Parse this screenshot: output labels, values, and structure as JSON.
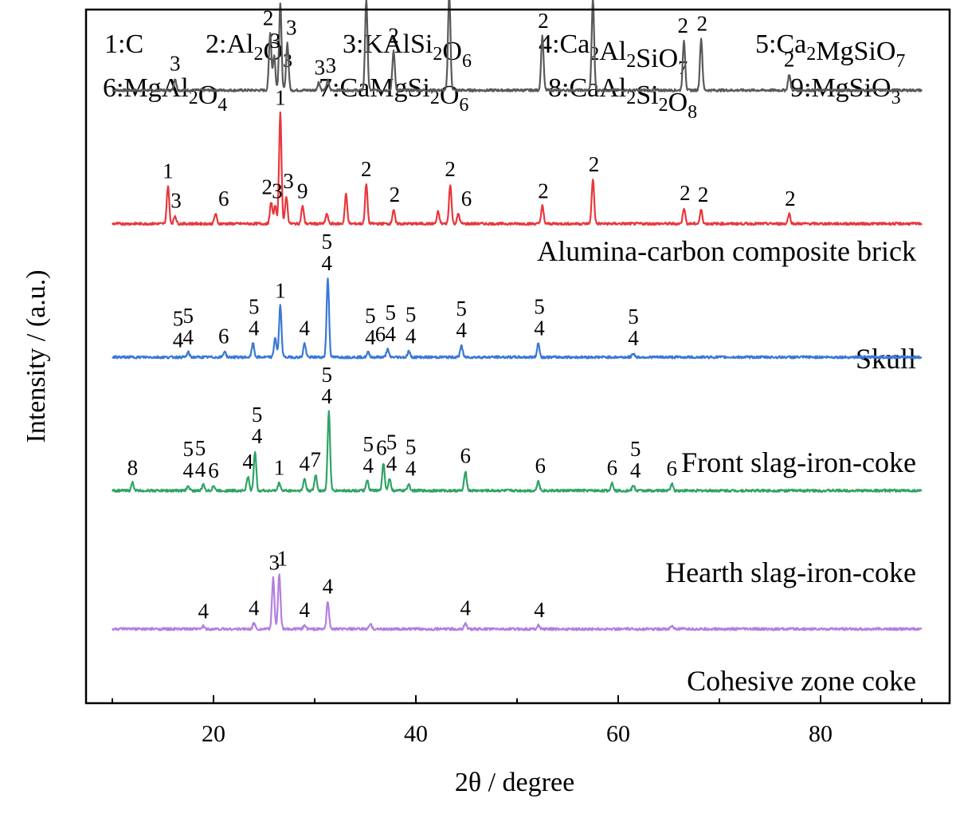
{
  "chart_data": {
    "type": "line",
    "xlabel": "2θ / degree",
    "ylabel": "Intensity / (a.u.)",
    "xlim": [
      5,
      93
    ],
    "x_ticks": [
      20,
      40,
      60,
      80
    ],
    "x_minor_ticks": [
      10,
      30,
      50,
      70,
      90
    ],
    "y_ticks_shown": false,
    "grid": false,
    "legend_placement": "top",
    "phase_legend": [
      {
        "id": "1",
        "formula": "C",
        "sub": []
      },
      {
        "id": "2",
        "formula": "Al2O3",
        "sub": [
          {
            "t": "Al",
            "s": "2"
          },
          {
            "t": "O",
            "s": "3"
          }
        ]
      },
      {
        "id": "3",
        "formula": "KAlSi2O6",
        "sub": [
          {
            "t": "KAlSi",
            "s": "2"
          },
          {
            "t": "O",
            "s": "6"
          }
        ]
      },
      {
        "id": "4",
        "formula": "Ca2Al2SiO7",
        "sub": [
          {
            "t": "Ca",
            "s": "2"
          },
          {
            "t": "Al",
            "s": "2"
          },
          {
            "t": "SiO",
            "s": "7"
          }
        ]
      },
      {
        "id": "5",
        "formula": "Ca2MgSiO7",
        "sub": [
          {
            "t": "Ca",
            "s": "2"
          },
          {
            "t": "MgSiO",
            "s": "7"
          }
        ]
      },
      {
        "id": "6",
        "formula": "MgAl2O4",
        "sub": [
          {
            "t": "MgAl",
            "s": "2"
          },
          {
            "t": "O",
            "s": "4"
          }
        ]
      },
      {
        "id": "7",
        "formula": "CaMgSi2O6",
        "sub": [
          {
            "t": "CaMgSi",
            "s": "2"
          },
          {
            "t": "O",
            "s": "6"
          }
        ]
      },
      {
        "id": "8",
        "formula": "CaAl2Si2O8",
        "sub": [
          {
            "t": "CaAl",
            "s": "2"
          },
          {
            "t": "Si",
            "s": "2"
          },
          {
            "t": "O",
            "s": "8"
          }
        ]
      },
      {
        "id": "9",
        "formula": "MgSiO3",
        "sub": [
          {
            "t": "MgSiO",
            "s": "3"
          }
        ]
      }
    ],
    "series": [
      {
        "name": "Alumina-carbon composite brick",
        "color": "#595959",
        "baseline": 6.2,
        "peaks": [
          [
            16.2,
            0.12
          ],
          [
            25.6,
            0.58
          ],
          [
            26.0,
            0.35
          ],
          [
            26.6,
            0.88
          ],
          [
            27.3,
            0.48
          ],
          [
            30.4,
            0.08
          ],
          [
            31.3,
            0.1
          ],
          [
            35.1,
            0.92
          ],
          [
            37.8,
            0.4
          ],
          [
            43.3,
            0.98
          ],
          [
            52.5,
            0.55
          ],
          [
            57.5,
            0.92
          ],
          [
            66.5,
            0.5
          ],
          [
            68.2,
            0.52
          ],
          [
            76.9,
            0.16
          ]
        ],
        "labels": [
          {
            "x": 16.2,
            "text": [
              "3"
            ]
          },
          {
            "x": 25.4,
            "text": [
              "2"
            ]
          },
          {
            "x": 26.1,
            "text": [
              "3"
            ]
          },
          {
            "x": 26.6,
            "text": [
              "1"
            ]
          },
          {
            "x": 27.7,
            "text": [
              "3"
            ]
          },
          {
            "x": 30.5,
            "text": [
              "3"
            ]
          },
          {
            "x": 31.6,
            "text": [
              "3"
            ]
          },
          {
            "x": 35.1,
            "text": [
              "2"
            ]
          },
          {
            "x": 37.8,
            "text": [
              "2"
            ]
          },
          {
            "x": 43.5,
            "text": [
              "2"
            ]
          },
          {
            "x": 52.6,
            "text": [
              "2"
            ]
          },
          {
            "x": 57.6,
            "text": [
              "2"
            ]
          },
          {
            "x": 66.4,
            "text": [
              "2"
            ]
          },
          {
            "x": 68.3,
            "text": [
              "2"
            ]
          },
          {
            "x": 76.9,
            "text": [
              "2"
            ]
          }
        ]
      },
      {
        "name": "Skull",
        "color": "#e8383d",
        "baseline": 4.85,
        "peaks": [
          [
            15.5,
            0.38
          ],
          [
            16.2,
            0.08
          ],
          [
            20.2,
            0.1
          ],
          [
            25.7,
            0.22
          ],
          [
            26.1,
            0.18
          ],
          [
            26.6,
            1.12
          ],
          [
            27.2,
            0.28
          ],
          [
            28.8,
            0.18
          ],
          [
            31.2,
            0.1
          ],
          [
            33.1,
            0.3
          ],
          [
            35.1,
            0.4
          ],
          [
            37.8,
            0.14
          ],
          [
            42.2,
            0.12
          ],
          [
            43.4,
            0.4
          ],
          [
            44.2,
            0.1
          ],
          [
            52.5,
            0.18
          ],
          [
            57.5,
            0.45
          ],
          [
            66.5,
            0.16
          ],
          [
            68.2,
            0.14
          ],
          [
            76.9,
            0.1
          ]
        ],
        "labels": [
          {
            "x": 15.5,
            "text": [
              "1"
            ]
          },
          {
            "x": 16.3,
            "text": [
              "3"
            ]
          },
          {
            "x": 21.0,
            "text": [
              "6"
            ]
          },
          {
            "x": 25.3,
            "text": [
              "2"
            ]
          },
          {
            "x": 26.3,
            "text": [
              "3"
            ]
          },
          {
            "x": 26.6,
            "text": [
              "1"
            ]
          },
          {
            "x": 27.4,
            "text": [
              "3"
            ]
          },
          {
            "x": 28.8,
            "text": [
              "9"
            ]
          },
          {
            "x": 35.1,
            "text": [
              "2"
            ]
          },
          {
            "x": 37.9,
            "text": [
              "2"
            ]
          },
          {
            "x": 43.4,
            "text": [
              "2"
            ]
          },
          {
            "x": 45.0,
            "text": [
              "6"
            ]
          },
          {
            "x": 52.6,
            "text": [
              "2"
            ]
          },
          {
            "x": 57.6,
            "text": [
              "2"
            ]
          },
          {
            "x": 66.6,
            "text": [
              "2"
            ]
          },
          {
            "x": 68.4,
            "text": [
              "2"
            ]
          },
          {
            "x": 77.0,
            "text": [
              "2"
            ]
          }
        ]
      },
      {
        "name": "Front slag-iron-coke",
        "color": "#3a78d6",
        "baseline": 3.5,
        "peaks": [
          [
            17.5,
            0.05
          ],
          [
            21.1,
            0.06
          ],
          [
            23.9,
            0.14
          ],
          [
            26.1,
            0.2
          ],
          [
            26.6,
            0.52
          ],
          [
            29.0,
            0.14
          ],
          [
            31.3,
            0.8
          ],
          [
            35.3,
            0.05
          ],
          [
            37.2,
            0.08
          ],
          [
            39.3,
            0.06
          ],
          [
            44.5,
            0.12
          ],
          [
            52.1,
            0.14
          ],
          [
            61.5,
            0.04
          ]
        ],
        "labels": [
          {
            "x": 16.5,
            "text": [
              "5",
              "4"
            ]
          },
          {
            "x": 17.5,
            "text": [
              "5",
              "4"
            ]
          },
          {
            "x": 21.0,
            "text": [
              "6"
            ]
          },
          {
            "x": 24.0,
            "text": [
              "5",
              "4"
            ]
          },
          {
            "x": 26.6,
            "text": [
              "1"
            ]
          },
          {
            "x": 29.0,
            "text": [
              "4"
            ]
          },
          {
            "x": 31.2,
            "text": [
              "5",
              "4"
            ]
          },
          {
            "x": 35.5,
            "text": [
              "5",
              "4"
            ]
          },
          {
            "x": 36.5,
            "text": [
              "6"
            ]
          },
          {
            "x": 37.5,
            "text": [
              "5",
              "4"
            ]
          },
          {
            "x": 39.5,
            "text": [
              "5",
              "4"
            ]
          },
          {
            "x": 44.5,
            "text": [
              "5",
              "4"
            ]
          },
          {
            "x": 52.2,
            "text": [
              "5",
              "4"
            ]
          },
          {
            "x": 61.5,
            "text": [
              "5",
              "4"
            ]
          }
        ]
      },
      {
        "name": "Hearth slag-iron-coke",
        "color": "#2fa366",
        "baseline": 2.15,
        "peaks": [
          [
            12.0,
            0.08
          ],
          [
            17.5,
            0.05
          ],
          [
            19.0,
            0.06
          ],
          [
            20.0,
            0.05
          ],
          [
            23.4,
            0.14
          ],
          [
            24.1,
            0.4
          ],
          [
            26.5,
            0.08
          ],
          [
            29.0,
            0.12
          ],
          [
            30.1,
            0.16
          ],
          [
            31.4,
            0.8
          ],
          [
            35.2,
            0.1
          ],
          [
            36.8,
            0.28
          ],
          [
            37.4,
            0.12
          ],
          [
            39.3,
            0.07
          ],
          [
            44.9,
            0.2
          ],
          [
            52.1,
            0.1
          ],
          [
            59.4,
            0.08
          ],
          [
            61.5,
            0.05
          ],
          [
            65.3,
            0.07
          ]
        ],
        "labels": [
          {
            "x": 12.0,
            "text": [
              "8"
            ]
          },
          {
            "x": 17.5,
            "text": [
              "5",
              "4"
            ]
          },
          {
            "x": 18.7,
            "text": [
              "5",
              "4"
            ]
          },
          {
            "x": 20.0,
            "text": [
              "6"
            ]
          },
          {
            "x": 23.4,
            "text": [
              "4"
            ]
          },
          {
            "x": 24.3,
            "text": [
              "5",
              "4"
            ]
          },
          {
            "x": 26.5,
            "text": [
              "1"
            ]
          },
          {
            "x": 29.0,
            "text": [
              "4"
            ]
          },
          {
            "x": 30.1,
            "text": [
              "7"
            ]
          },
          {
            "x": 31.2,
            "text": [
              "5",
              "4"
            ]
          },
          {
            "x": 35.3,
            "text": [
              "5",
              "4"
            ]
          },
          {
            "x": 36.6,
            "text": [
              "6"
            ]
          },
          {
            "x": 37.6,
            "text": [
              "5",
              "4"
            ]
          },
          {
            "x": 39.5,
            "text": [
              "5",
              "4"
            ]
          },
          {
            "x": 44.9,
            "text": [
              "6"
            ]
          },
          {
            "x": 52.3,
            "text": [
              "6"
            ]
          },
          {
            "x": 59.4,
            "text": [
              "6"
            ]
          },
          {
            "x": 61.7,
            "text": [
              "5",
              "4"
            ]
          },
          {
            "x": 65.3,
            "text": [
              "6"
            ]
          }
        ]
      },
      {
        "name": "Cohesive zone coke",
        "color": "#b47fdf",
        "baseline": 0.75,
        "peaks": [
          [
            19.0,
            0.03
          ],
          [
            24.0,
            0.06
          ],
          [
            25.9,
            0.52
          ],
          [
            26.5,
            0.56
          ],
          [
            29.0,
            0.04
          ],
          [
            31.3,
            0.28
          ],
          [
            35.5,
            0.05
          ],
          [
            44.9,
            0.06
          ],
          [
            52.1,
            0.04
          ],
          [
            65.3,
            0.03
          ]
        ],
        "labels": [
          {
            "x": 19.0,
            "text": [
              "4"
            ]
          },
          {
            "x": 24.0,
            "text": [
              "4"
            ]
          },
          {
            "x": 26.0,
            "text": [
              "3"
            ]
          },
          {
            "x": 26.8,
            "text": [
              "1"
            ]
          },
          {
            "x": 29.0,
            "text": [
              "4"
            ]
          },
          {
            "x": 31.3,
            "text": [
              "4"
            ]
          },
          {
            "x": 44.9,
            "text": [
              "4"
            ]
          },
          {
            "x": 52.2,
            "text": [
              "4"
            ]
          }
        ]
      }
    ]
  }
}
